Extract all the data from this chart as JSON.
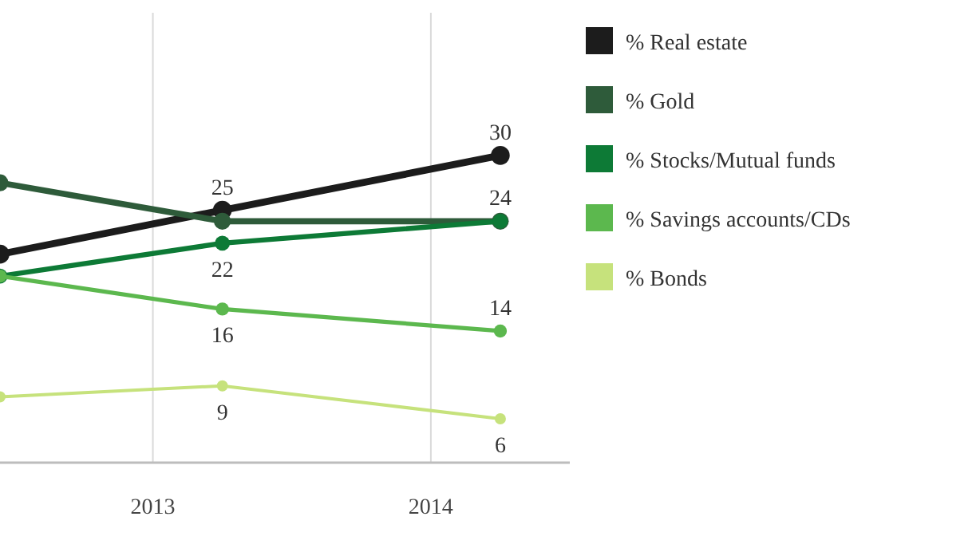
{
  "chart_data": {
    "type": "line",
    "x": [
      2012.45,
      2013.25,
      2014.25
    ],
    "xlim": [
      2012.45,
      2014.5
    ],
    "xticks": [
      2013,
      2014
    ],
    "ylim": [
      2,
      43
    ],
    "tick_labels": "x",
    "grid": "x",
    "legend": "right",
    "marker": "circle",
    "line_style": "solid",
    "series": [
      {
        "name": "% Real estate",
        "color": "#1c1c1c",
        "values": [
          21,
          25,
          30
        ],
        "value_labels": [
          null,
          "25",
          "30"
        ]
      },
      {
        "name": "% Gold",
        "color": "#2e5b3a",
        "values": [
          27.5,
          24,
          24
        ],
        "value_labels": [
          null,
          null,
          null
        ]
      },
      {
        "name": "% Stocks/Mutual funds",
        "color": "#0d7a36",
        "values": [
          19,
          22,
          24
        ],
        "value_labels": [
          null,
          "22",
          "24"
        ]
      },
      {
        "name": "% Savings accounts/CDs",
        "color": "#5cb84e",
        "values": [
          19,
          16,
          14
        ],
        "value_labels": [
          null,
          "16",
          "14"
        ]
      },
      {
        "name": "% Bonds",
        "color": "#c6e27c",
        "values": [
          8,
          9,
          6
        ],
        "value_labels": [
          null,
          "9",
          "6"
        ]
      }
    ]
  }
}
